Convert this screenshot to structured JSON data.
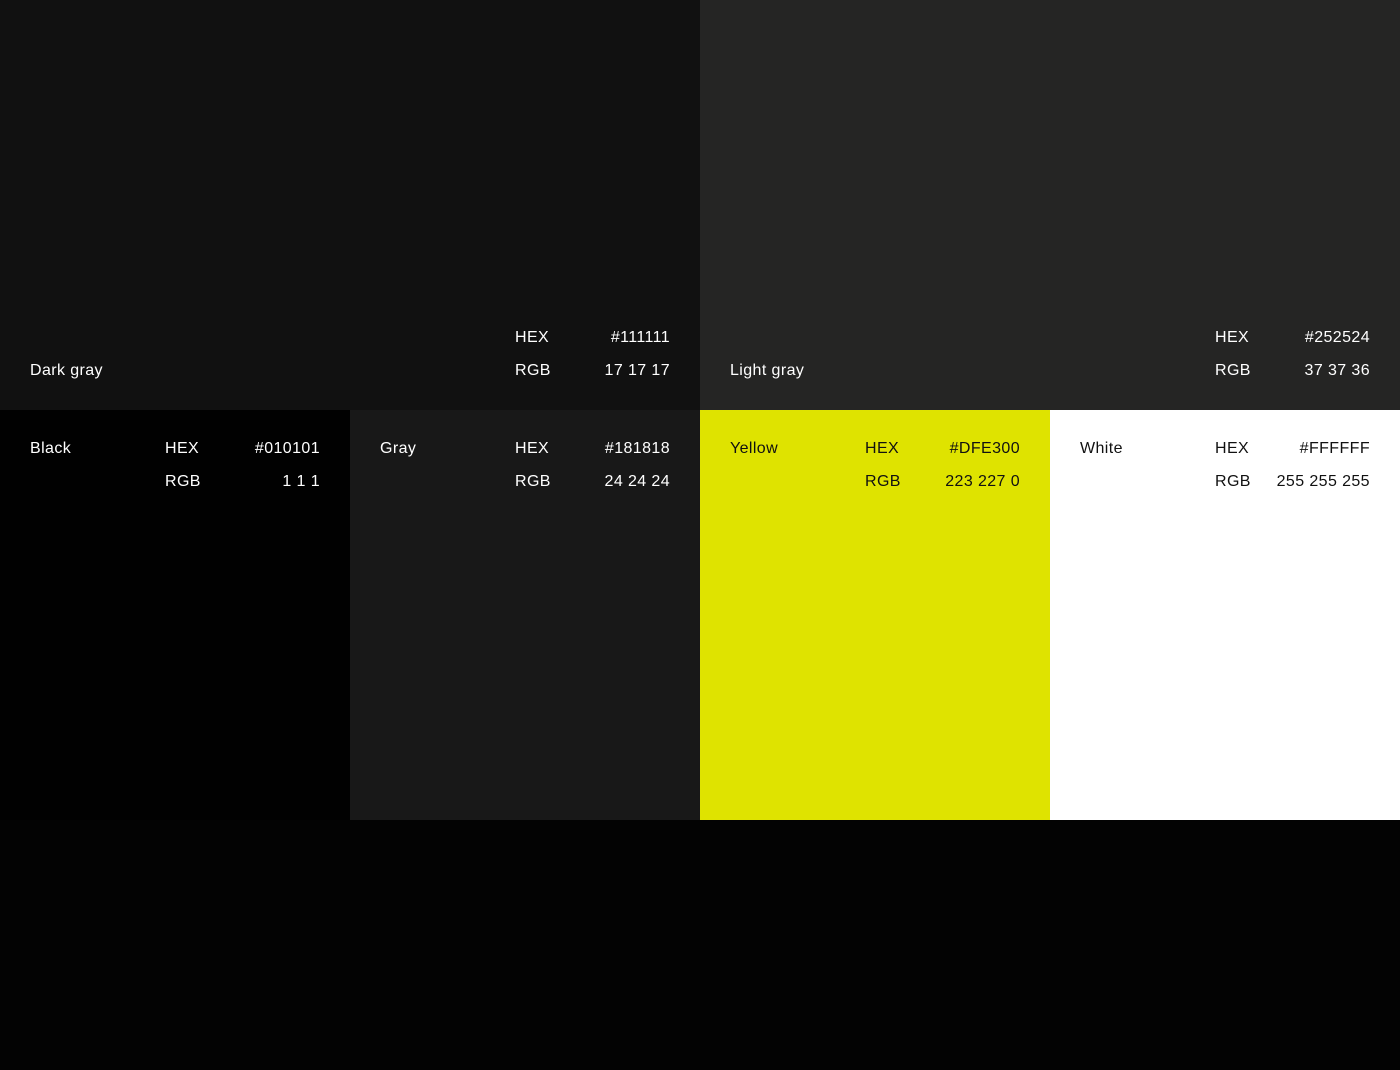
{
  "labels": {
    "hex": "HEX",
    "rgb": "RGB"
  },
  "swatches": [
    {
      "name": "Dark gray",
      "hex": "#111111",
      "rgb": "17 17 17",
      "text_color": "#ffffff"
    },
    {
      "name": "Light gray",
      "hex": "#252524",
      "rgb": "37 37 36",
      "text_color": "#ffffff"
    },
    {
      "name": "Black",
      "hex": "#010101",
      "rgb": "1 1 1",
      "text_color": "#ffffff"
    },
    {
      "name": "Gray",
      "hex": "#181818",
      "rgb": "24 24 24",
      "text_color": "#ffffff"
    },
    {
      "name": "Yellow",
      "hex": "#DFE300",
      "rgb": "223 227 0",
      "text_color": "#111111"
    },
    {
      "name": "White",
      "hex": "#FFFFFF",
      "rgb": "255 255 255",
      "text_color": "#111111"
    }
  ]
}
